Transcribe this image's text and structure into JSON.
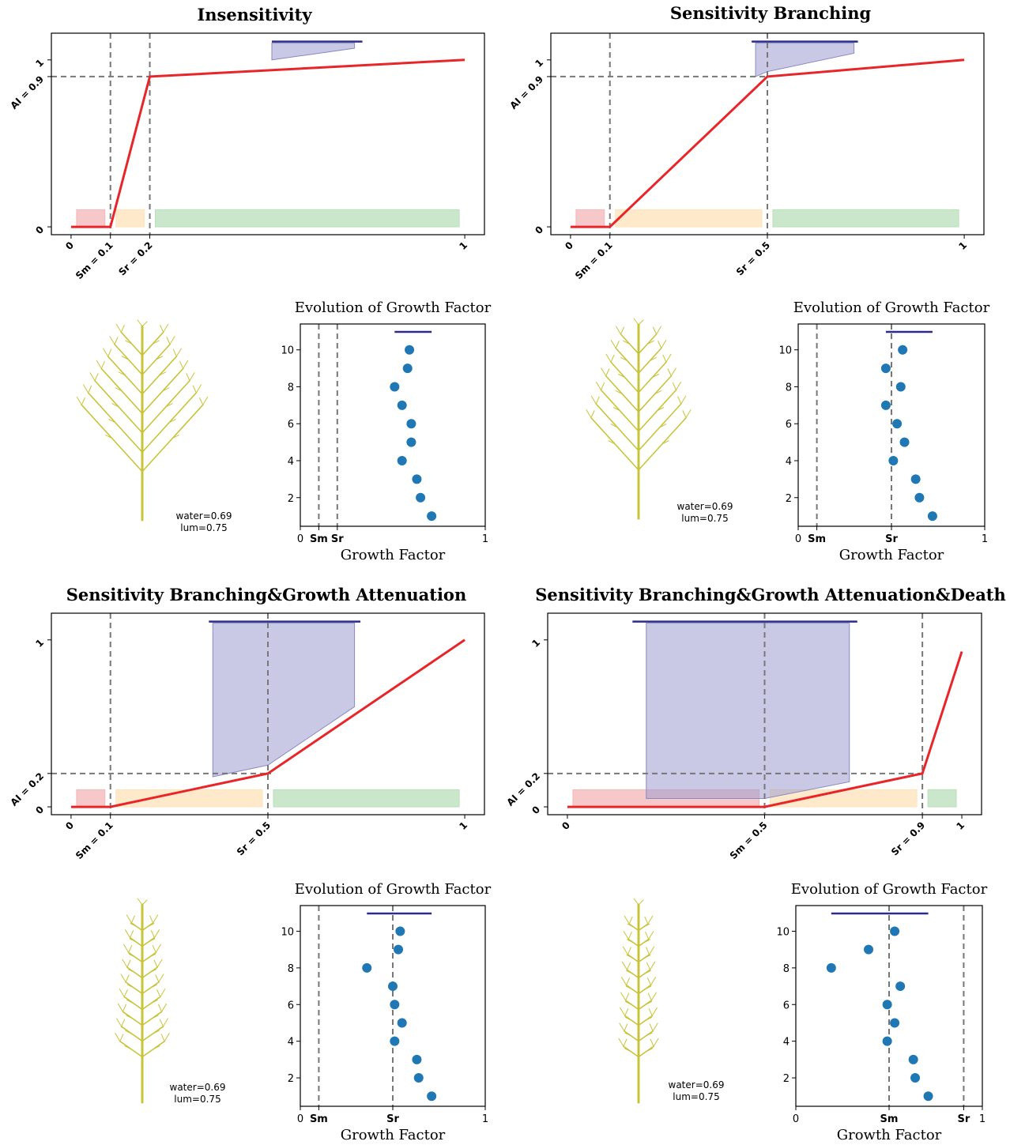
{
  "chart_data": [
    {
      "type": "line",
      "title": "Insensitivity",
      "x": [
        0,
        0.1,
        0.2,
        1
      ],
      "series": [
        {
          "color": "#e8262a",
          "values": [
            0,
            0,
            0.9,
            1
          ]
        }
      ],
      "xlim": [
        -0.05,
        1.05
      ],
      "ylim": [
        -0.047,
        1.16
      ],
      "xticks": [
        0,
        {
          "value": 0.1,
          "label": "Sm = 0.1"
        },
        {
          "value": 0.2,
          "label": "Sr = 0.2"
        },
        1
      ],
      "yticks": [
        0,
        {
          "value": 0.9,
          "label": "AI = 0.9"
        },
        1
      ]
    },
    {
      "type": "scatter",
      "title": "Evolution of Growth Factor",
      "xlabel": "Growth Factor",
      "color": "#1f77b4",
      "x": [
        0.59,
        0.58,
        0.51,
        0.55,
        0.6,
        0.6,
        0.55,
        0.63,
        0.65,
        0.71
      ],
      "values": [
        10,
        9,
        8,
        7,
        6,
        5,
        4,
        3,
        2,
        1
      ],
      "xlim": [
        0,
        1
      ],
      "ylim": [
        0.45,
        11.4
      ],
      "xticks": [
        0,
        {
          "value": 0.1,
          "label": "Sm"
        },
        {
          "value": 0.2,
          "label": "Sr"
        },
        1
      ],
      "yticks": [
        2,
        4,
        6,
        8,
        10
      ],
      "annotations": [
        "water=0.69",
        "lum=0.75"
      ]
    },
    {
      "type": "line",
      "title": "Sensitivity Branching",
      "x": [
        0,
        0.1,
        0.5,
        1
      ],
      "series": [
        {
          "color": "#e8262a",
          "values": [
            0,
            0,
            0.9,
            1
          ]
        }
      ],
      "xlim": [
        -0.05,
        1.05
      ],
      "ylim": [
        -0.047,
        1.16
      ],
      "xticks": [
        0,
        {
          "value": 0.1,
          "label": "Sm = 0.1"
        },
        {
          "value": 0.5,
          "label": "Sr = 0.5"
        },
        1
      ],
      "yticks": [
        0,
        {
          "value": 0.9,
          "label": "AI = 0.9"
        },
        1
      ]
    },
    {
      "type": "scatter",
      "title": "Evolution of Growth Factor",
      "xlabel": "Growth Factor",
      "color": "#1f77b4",
      "x": [
        0.56,
        0.47,
        0.55,
        0.47,
        0.53,
        0.57,
        0.51,
        0.63,
        0.65,
        0.72
      ],
      "values": [
        10,
        9,
        8,
        7,
        6,
        5,
        4,
        3,
        2,
        1
      ],
      "xlim": [
        0,
        1
      ],
      "ylim": [
        0.45,
        11.4
      ],
      "xticks": [
        0,
        {
          "value": 0.1,
          "label": "Sm"
        },
        {
          "value": 0.5,
          "label": "Sr"
        },
        1
      ],
      "yticks": [
        2,
        4,
        6,
        8,
        10
      ],
      "annotations": [
        "water=0.69",
        "lum=0.75"
      ]
    },
    {
      "type": "line",
      "title": "Sensitivity Branching&Growth Attenuation",
      "x": [
        0,
        0.1,
        0.5,
        1
      ],
      "series": [
        {
          "color": "#e8262a",
          "values": [
            0,
            0,
            0.2,
            1
          ]
        }
      ],
      "xlim": [
        -0.05,
        1.05
      ],
      "ylim": [
        -0.047,
        1.16
      ],
      "xticks": [
        0,
        {
          "value": 0.1,
          "label": "Sm = 0.1"
        },
        {
          "value": 0.5,
          "label": "Sr = 0.5"
        },
        1
      ],
      "yticks": [
        0,
        {
          "value": 0.2,
          "label": "AI = 0.2"
        },
        1
      ]
    },
    {
      "type": "scatter",
      "title": "Evolution of Growth Factor",
      "xlabel": "Growth Factor",
      "color": "#1f77b4",
      "x": [
        0.54,
        0.53,
        0.36,
        0.5,
        0.51,
        0.55,
        0.51,
        0.63,
        0.64,
        0.71
      ],
      "values": [
        10,
        9,
        8,
        7,
        6,
        5,
        4,
        3,
        2,
        1
      ],
      "xlim": [
        0,
        1
      ],
      "ylim": [
        0.45,
        11.4
      ],
      "xticks": [
        0,
        {
          "value": 0.1,
          "label": "Sm"
        },
        {
          "value": 0.5,
          "label": "Sr"
        },
        1
      ],
      "yticks": [
        2,
        4,
        6,
        8,
        10
      ],
      "annotations": [
        "water=0.69",
        "lum=0.75"
      ]
    },
    {
      "type": "line",
      "title": "Sensitivity Branching&Growth Attenuation&Death",
      "x": [
        0,
        0.5,
        0.9,
        1
      ],
      "series": [
        {
          "color": "#e8262a",
          "values": [
            0,
            0,
            0.2,
            0.93
          ]
        }
      ],
      "xlim": [
        -0.05,
        1.05
      ],
      "ylim": [
        -0.047,
        1.16
      ],
      "xticks": [
        0,
        {
          "value": 0.5,
          "label": "Sm = 0.5"
        },
        {
          "value": 0.9,
          "label": "Sr = 0.9"
        },
        1
      ],
      "yticks": [
        0,
        {
          "value": 0.2,
          "label": "AI = 0.2"
        },
        1
      ]
    },
    {
      "type": "scatter",
      "title": "Evolution of Growth Factor",
      "xlabel": "Growth Factor",
      "color": "#1f77b4",
      "x": [
        0.53,
        0.39,
        0.19,
        0.56,
        0.49,
        0.53,
        0.49,
        0.63,
        0.64,
        0.71
      ],
      "values": [
        10,
        9,
        8,
        7,
        6,
        5,
        4,
        3,
        2,
        1
      ],
      "xlim": [
        0,
        1
      ],
      "ylim": [
        0.45,
        11.4
      ],
      "xticks": [
        0,
        {
          "value": 0.5,
          "label": "Sm"
        },
        {
          "value": 0.9,
          "label": "Sr"
        },
        1
      ],
      "yticks": [
        2,
        4,
        6,
        8,
        10
      ],
      "annotations": [
        "water=0.69",
        "lum=0.75"
      ]
    }
  ]
}
